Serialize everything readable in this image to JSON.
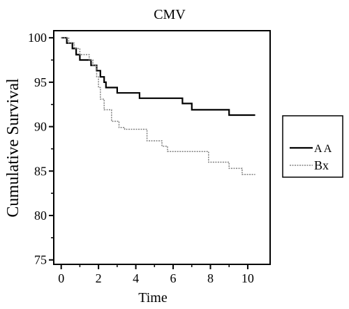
{
  "chart_data": {
    "type": "line",
    "title": "CMV",
    "xlabel": "Time",
    "ylabel": "Cumulative Survival",
    "xlim": [
      -0.4,
      11.2
    ],
    "ylim": [
      74.5,
      100.8
    ],
    "x_ticks": [
      0,
      2,
      4,
      6,
      8,
      10
    ],
    "x_tick_labels": [
      "0",
      "2",
      "4",
      "6",
      "8",
      "10"
    ],
    "y_ticks": [
      75,
      80,
      85,
      90,
      95,
      100
    ],
    "y_tick_labels": [
      "75",
      "80",
      "85",
      "90",
      "95",
      "100"
    ],
    "grid": false,
    "legend_position": "right",
    "series": [
      {
        "name": "A A",
        "color": "#000000",
        "style": "solid",
        "points": [
          [
            0,
            100
          ],
          [
            0.3,
            100
          ],
          [
            0.3,
            99.4
          ],
          [
            0.6,
            99.4
          ],
          [
            0.6,
            98.8
          ],
          [
            0.8,
            98.8
          ],
          [
            0.8,
            98.1
          ],
          [
            1.0,
            98.1
          ],
          [
            1.0,
            97.5
          ],
          [
            1.6,
            97.5
          ],
          [
            1.6,
            96.9
          ],
          [
            1.9,
            96.9
          ],
          [
            1.9,
            96.3
          ],
          [
            2.1,
            96.3
          ],
          [
            2.1,
            95.6
          ],
          [
            2.3,
            95.6
          ],
          [
            2.3,
            95.0
          ],
          [
            2.4,
            95.0
          ],
          [
            2.4,
            94.4
          ],
          [
            2.7,
            94.4
          ],
          [
            2.7,
            94.4
          ],
          [
            3.0,
            94.4
          ],
          [
            3.0,
            93.8
          ],
          [
            4.2,
            93.8
          ],
          [
            4.2,
            93.2
          ],
          [
            6.5,
            93.2
          ],
          [
            6.5,
            92.6
          ],
          [
            7.0,
            92.6
          ],
          [
            7.0,
            91.9
          ],
          [
            9.0,
            91.9
          ],
          [
            9.0,
            91.3
          ],
          [
            10.4,
            91.3
          ]
        ]
      },
      {
        "name": "Bx",
        "color": "#808080",
        "style": "dotted",
        "points": [
          [
            0,
            100
          ],
          [
            0.4,
            100
          ],
          [
            0.4,
            99.4
          ],
          [
            0.7,
            99.4
          ],
          [
            0.7,
            98.8
          ],
          [
            1.0,
            98.8
          ],
          [
            1.0,
            98.1
          ],
          [
            1.5,
            98.1
          ],
          [
            1.5,
            97.5
          ],
          [
            1.7,
            97.5
          ],
          [
            1.7,
            96.9
          ],
          [
            1.9,
            96.9
          ],
          [
            1.9,
            95.6
          ],
          [
            2.0,
            95.6
          ],
          [
            2.0,
            94.4
          ],
          [
            2.1,
            94.4
          ],
          [
            2.1,
            93.1
          ],
          [
            2.3,
            93.1
          ],
          [
            2.3,
            91.9
          ],
          [
            2.7,
            91.9
          ],
          [
            2.7,
            90.6
          ],
          [
            3.1,
            90.6
          ],
          [
            3.1,
            89.9
          ],
          [
            3.4,
            89.9
          ],
          [
            3.4,
            89.7
          ],
          [
            4.6,
            89.7
          ],
          [
            4.6,
            88.4
          ],
          [
            5.4,
            88.4
          ],
          [
            5.4,
            87.8
          ],
          [
            5.7,
            87.8
          ],
          [
            5.7,
            87.2
          ],
          [
            7.9,
            87.2
          ],
          [
            7.9,
            86.0
          ],
          [
            9.0,
            86.0
          ],
          [
            9.0,
            85.3
          ],
          [
            9.7,
            85.3
          ],
          [
            9.7,
            84.6
          ],
          [
            10.4,
            84.6
          ]
        ]
      }
    ]
  }
}
